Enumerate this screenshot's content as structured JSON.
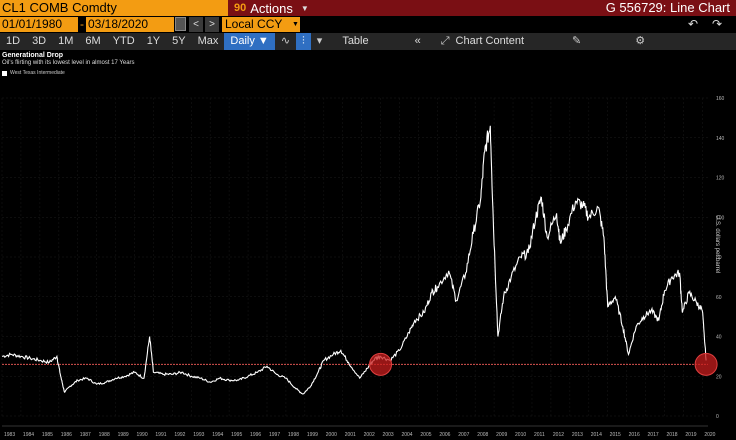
{
  "header": {
    "ticker": "CL1 COMB Comdty",
    "actions_number": "90",
    "actions_label": "Actions",
    "chart_id": "G 556729: Line Chart"
  },
  "controls": {
    "start_date": "01/01/1980",
    "end_date": "03/18/2020",
    "currency": "Local CCY",
    "nav_prev": "<",
    "nav_next": ">",
    "undo": "↶",
    "redo": "↷"
  },
  "toolbar": {
    "periods": [
      "1D",
      "3D",
      "1M",
      "6M",
      "YTD",
      "1Y",
      "5Y",
      "Max"
    ],
    "frequency": "Daily",
    "table_label": "Table",
    "collapse": "«",
    "chart_content": "Chart Content"
  },
  "icons": {
    "calendar": "calendar-icon",
    "line_style": "line-chart-icon",
    "candles": "candlestick-icon",
    "chart_content": "chart-content-icon",
    "edit": "edit-icon",
    "settings": "gear-icon"
  },
  "chart_data": {
    "type": "line",
    "title": "Generational Drop",
    "subtitle": "Oil's flirting with its lowest level in almost 17 Years",
    "ylabel": "U.S. dollars per barrel",
    "series_name": "West Texas Intermediate",
    "ylim": [
      0,
      160
    ],
    "yticks": [
      0,
      20,
      40,
      60,
      80,
      100,
      120,
      140,
      160
    ],
    "xticks": [
      "1983",
      "1984",
      "1985",
      "1986",
      "1987",
      "1988",
      "1989",
      "1990",
      "1991",
      "1992",
      "1993",
      "1994",
      "1995",
      "1996",
      "1997",
      "1998",
      "1999",
      "2000",
      "2001",
      "2002",
      "2003",
      "2004",
      "2005",
      "2006",
      "2007",
      "2008",
      "2009",
      "2010",
      "2011",
      "2012",
      "2013",
      "2014",
      "2015",
      "2016",
      "2017",
      "2018",
      "2019",
      "2020"
    ],
    "x": [
      1983.0,
      1983.5,
      1984.0,
      1984.5,
      1985.0,
      1985.5,
      1985.9,
      1986.1,
      1986.3,
      1986.6,
      1987.0,
      1987.5,
      1988.0,
      1988.5,
      1989.0,
      1989.5,
      1990.0,
      1990.5,
      1990.8,
      1991.0,
      1991.5,
      1992.0,
      1992.5,
      1993.0,
      1993.5,
      1994.0,
      1994.5,
      1995.0,
      1995.5,
      1996.0,
      1996.5,
      1997.0,
      1997.5,
      1998.0,
      1998.5,
      1998.9,
      1999.3,
      1999.7,
      2000.0,
      2000.5,
      2000.9,
      2001.3,
      2001.9,
      2002.3,
      2002.7,
      2003.0,
      2003.5,
      2004.0,
      2004.5,
      2004.8,
      2005.3,
      2005.7,
      2006.0,
      2006.6,
      2007.0,
      2007.5,
      2007.9,
      2008.3,
      2008.5,
      2008.8,
      2008.95,
      2009.2,
      2009.5,
      2009.9,
      2010.4,
      2010.8,
      2011.2,
      2011.5,
      2011.8,
      2012.3,
      2012.5,
      2012.8,
      2013.3,
      2013.7,
      2014.0,
      2014.5,
      2014.8,
      2015.0,
      2015.4,
      2015.8,
      2016.1,
      2016.5,
      2016.9,
      2017.3,
      2017.7,
      2018.0,
      2018.4,
      2018.8,
      2018.95,
      2019.3,
      2019.7,
      2020.0,
      2020.2
    ],
    "values": [
      30,
      31,
      30,
      29,
      28,
      27,
      30,
      20,
      12,
      15,
      18,
      19,
      16,
      17,
      19,
      20,
      22,
      19,
      40,
      22,
      21,
      21,
      22,
      20,
      19,
      17,
      19,
      18,
      18,
      20,
      22,
      25,
      21,
      19,
      14,
      11,
      15,
      22,
      28,
      31,
      33,
      27,
      19,
      24,
      29,
      30,
      28,
      33,
      42,
      48,
      52,
      62,
      65,
      73,
      58,
      72,
      92,
      110,
      133,
      146,
      100,
      40,
      60,
      70,
      80,
      82,
      100,
      110,
      90,
      102,
      87,
      94,
      108,
      106,
      100,
      105,
      90,
      55,
      60,
      45,
      31,
      45,
      50,
      53,
      48,
      63,
      70,
      72,
      52,
      62,
      57,
      53,
      28
    ],
    "annotations": [
      {
        "type": "hline",
        "value": 26
      },
      {
        "type": "circle",
        "x": 2003.0,
        "value": 26
      },
      {
        "type": "circle",
        "x": 2020.2,
        "value": 26
      }
    ]
  }
}
